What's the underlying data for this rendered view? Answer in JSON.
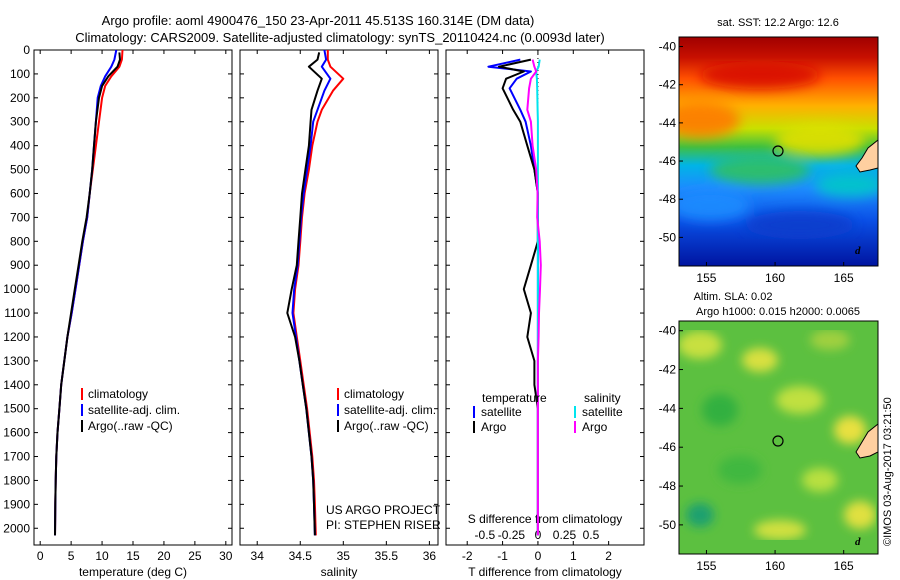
{
  "header": {
    "line1": "Argo profile: aoml 4900476_150 23-Apr-2011 45.513S 160.314E (DM data)",
    "line2": "Climatology: CARS2009. Satellite-adjusted climatology: synTS_20110424.nc (0.0093d later)"
  },
  "credits": {
    "project": "US ARGO PROJECT",
    "pi": "PI: STEPHEN RISER",
    "watermark": "©IMOS 03-Aug-2017 03:21:50"
  },
  "colors": {
    "climatology": "#ff0000",
    "satellite": "#0000ff",
    "argo": "#000000",
    "sal_satellite": "#00e5ee",
    "sal_argo": "#ff00ff"
  },
  "chart_data": [
    {
      "type": "line",
      "xlabel": "temperature (deg C)",
      "xlim": [
        -1,
        31
      ],
      "xticks": [
        0,
        5,
        10,
        15,
        20,
        25,
        30
      ],
      "ylim": [
        2070,
        0
      ],
      "yticks": [
        0,
        100,
        200,
        300,
        400,
        500,
        600,
        700,
        800,
        900,
        1000,
        1100,
        1200,
        1300,
        1400,
        1500,
        1600,
        1700,
        1800,
        1900,
        2000
      ],
      "legend": [
        "climatology",
        "satellite-adj. clim.",
        "Argo(..raw -QC)"
      ],
      "series": [
        {
          "name": "climatology",
          "color": "#ff0000",
          "x": [
            13.3,
            13.2,
            12.8,
            11.5,
            10.5,
            10.0,
            9.5,
            9.0,
            8.5,
            8.0,
            7.6,
            6.9,
            6.3,
            5.7,
            5.1,
            4.4,
            3.9,
            3.4,
            3.1,
            2.8,
            2.6,
            2.5,
            2.45,
            2.4
          ],
          "y": [
            0,
            40,
            70,
            110,
            150,
            200,
            300,
            400,
            500,
            600,
            700,
            800,
            900,
            1000,
            1100,
            1200,
            1300,
            1400,
            1500,
            1600,
            1700,
            1800,
            1900,
            2030
          ]
        },
        {
          "name": "satellite-adj. clim.",
          "color": "#0000ff",
          "x": [
            12.3,
            12.0,
            11.5,
            10.5,
            9.8,
            9.3,
            9.0,
            8.7,
            8.4,
            8.0,
            7.6,
            6.9,
            6.3,
            5.7,
            5.1,
            4.4,
            3.9,
            3.4,
            3.1,
            2.8,
            2.6,
            2.5,
            2.45,
            2.4
          ],
          "y": [
            0,
            40,
            70,
            110,
            150,
            200,
            300,
            400,
            500,
            600,
            700,
            800,
            900,
            1000,
            1100,
            1200,
            1300,
            1400,
            1500,
            1600,
            1700,
            1800,
            1900,
            2030
          ]
        },
        {
          "name": "Argo(..raw -QC)",
          "color": "#000000",
          "x": [
            12.8,
            12.9,
            12.5,
            11.0,
            10.0,
            9.5,
            9.0,
            8.7,
            8.4,
            8.0,
            7.5,
            6.8,
            6.2,
            5.6,
            5.0,
            4.4,
            3.9,
            3.4,
            3.1,
            2.8,
            2.6,
            2.5,
            2.45,
            2.4
          ],
          "y": [
            10,
            40,
            70,
            110,
            150,
            200,
            300,
            400,
            500,
            600,
            700,
            800,
            900,
            1000,
            1100,
            1200,
            1300,
            1400,
            1500,
            1600,
            1700,
            1800,
            1900,
            2030
          ]
        }
      ]
    },
    {
      "type": "line",
      "xlabel": "salinity",
      "xlim": [
        33.8,
        36.1
      ],
      "xticks": [
        34,
        34.5,
        35,
        35.5,
        36
      ],
      "ylim": [
        2070,
        0
      ],
      "legend": [
        "climatology",
        "satellite-adj. clim.",
        "Argo(..raw -QC)"
      ],
      "series": [
        {
          "name": "climatology",
          "color": "#ff0000",
          "x": [
            34.82,
            34.82,
            34.85,
            35.0,
            34.88,
            34.75,
            34.7,
            34.64,
            34.6,
            34.55,
            34.52,
            34.5,
            34.48,
            34.44,
            34.42,
            34.46,
            34.5,
            34.54,
            34.58,
            34.61,
            34.64,
            34.66,
            34.67,
            34.68
          ],
          "y": [
            0,
            40,
            70,
            120,
            170,
            250,
            300,
            400,
            500,
            600,
            700,
            800,
            900,
            1000,
            1100,
            1200,
            1300,
            1400,
            1500,
            1600,
            1700,
            1800,
            1900,
            2030
          ]
        },
        {
          "name": "satellite-adj. clim.",
          "color": "#0000ff",
          "x": [
            34.78,
            34.8,
            34.75,
            34.85,
            34.78,
            34.7,
            34.65,
            34.62,
            34.58,
            34.54,
            34.51,
            34.49,
            34.47,
            34.43,
            34.41,
            34.45,
            34.49,
            34.53,
            34.57,
            34.6,
            34.63,
            34.65,
            34.66,
            34.67
          ],
          "y": [
            0,
            40,
            70,
            120,
            170,
            250,
            300,
            400,
            500,
            600,
            700,
            800,
            900,
            1000,
            1100,
            1200,
            1300,
            1400,
            1500,
            1600,
            1700,
            1800,
            1900,
            2030
          ]
        },
        {
          "name": "Argo(..raw -QC)",
          "color": "#000000",
          "x": [
            34.72,
            34.7,
            34.6,
            34.75,
            34.7,
            34.63,
            34.62,
            34.6,
            34.56,
            34.52,
            34.5,
            34.48,
            34.46,
            34.4,
            34.35,
            34.44,
            34.49,
            34.53,
            34.57,
            34.6,
            34.63,
            34.65,
            34.66,
            34.67
          ],
          "y": [
            10,
            40,
            70,
            120,
            170,
            250,
            300,
            400,
            500,
            600,
            700,
            800,
            900,
            1000,
            1100,
            1200,
            1300,
            1400,
            1500,
            1600,
            1700,
            1800,
            1900,
            2030
          ]
        }
      ]
    },
    {
      "type": "line",
      "xlabel": "T difference from climatology",
      "xlabel_top": "S difference from climatology",
      "xlim": [
        -2.6,
        3.0
      ],
      "xticks": [
        -2,
        -1,
        0,
        1,
        2
      ],
      "xticks_top": [
        -0.5,
        -0.25,
        0,
        0.25,
        0.5
      ],
      "ylim": [
        2070,
        0
      ],
      "legend_temperature": {
        "title": "temperature",
        "items": [
          "satellite",
          "Argo"
        ]
      },
      "legend_salinity": {
        "title": "salinity",
        "items": [
          "satellite",
          "Argo"
        ]
      },
      "series": [
        {
          "name": "satellite",
          "color": "#0000ff",
          "x": [
            -0.5,
            -1.4,
            -0.2,
            -0.6,
            -0.8,
            -0.5,
            -0.35,
            -0.2,
            -0.1,
            0,
            0,
            0,
            0,
            0,
            0,
            0,
            0,
            0,
            0,
            0,
            0,
            0,
            0,
            0
          ],
          "y": [
            40,
            70,
            90,
            120,
            160,
            250,
            300,
            400,
            500,
            600,
            700,
            800,
            900,
            1000,
            1100,
            1200,
            1300,
            1400,
            1500,
            1600,
            1700,
            1800,
            1900,
            2030
          ]
        },
        {
          "name": "Argo",
          "color": "#000000",
          "x": [
            -0.2,
            -1.1,
            -0.4,
            -0.9,
            -1.0,
            -0.7,
            -0.5,
            -0.3,
            -0.1,
            0,
            0,
            0,
            -0.2,
            -0.4,
            -0.2,
            -0.3,
            -0.1,
            -0.1,
            0,
            0,
            0,
            0,
            0,
            0
          ],
          "y": [
            40,
            70,
            90,
            120,
            160,
            250,
            300,
            400,
            500,
            600,
            700,
            800,
            900,
            1000,
            1100,
            1200,
            1300,
            1400,
            1500,
            1600,
            1700,
            1800,
            1900,
            2030
          ]
        },
        {
          "name": "satellite",
          "color": "#00e5ee",
          "x": [
            0.05,
            0.02,
            -0.05,
            -0.03,
            -0.02,
            -0.01,
            0,
            0,
            0,
            0,
            0,
            0,
            0,
            0,
            0,
            0,
            0,
            0,
            0,
            0,
            0,
            0,
            0,
            0
          ],
          "y": [
            40,
            70,
            90,
            120,
            160,
            250,
            300,
            400,
            500,
            600,
            700,
            800,
            900,
            1000,
            1100,
            1200,
            1300,
            1400,
            1500,
            1600,
            1700,
            1800,
            1900,
            2030
          ]
        },
        {
          "name": "Argo",
          "color": "#ff00ff",
          "x": [
            -0.15,
            -0.1,
            -0.05,
            -0.2,
            -0.25,
            -0.3,
            -0.2,
            -0.15,
            -0.05,
            -0.01,
            -0.02,
            0.05,
            0.08,
            0.06,
            0.03,
            0.02,
            0,
            0,
            0,
            0,
            0,
            0,
            0,
            0
          ],
          "y": [
            40,
            70,
            90,
            120,
            160,
            250,
            300,
            400,
            500,
            600,
            700,
            800,
            900,
            1000,
            1100,
            1200,
            1300,
            1400,
            1500,
            1600,
            1700,
            1800,
            1900,
            2030
          ]
        }
      ]
    },
    {
      "type": "heatmap",
      "title": "sat. SST: 12.2  Argo: 12.6",
      "xlim": [
        153,
        167.5
      ],
      "ylim": [
        -51.5,
        -39.5
      ],
      "xticks": [
        155,
        160,
        165
      ],
      "yticks": [
        -40,
        -42,
        -44,
        -46,
        -48,
        -50
      ],
      "marker": {
        "lon": 160.314,
        "lat": -45.513
      },
      "corner_label": "d"
    },
    {
      "type": "heatmap",
      "title_line1": "Altim. SLA: 0.02",
      "title_line2": "Argo h1000: 0.015 h2000: 0.0065",
      "xlim": [
        153,
        167.5
      ],
      "ylim": [
        -51.5,
        -39.5
      ],
      "xticks": [
        155,
        160,
        165
      ],
      "yticks": [
        -40,
        -42,
        -44,
        -46,
        -48,
        -50
      ],
      "marker": {
        "lon": 160.314,
        "lat": -45.513
      },
      "corner_label": "d"
    }
  ]
}
